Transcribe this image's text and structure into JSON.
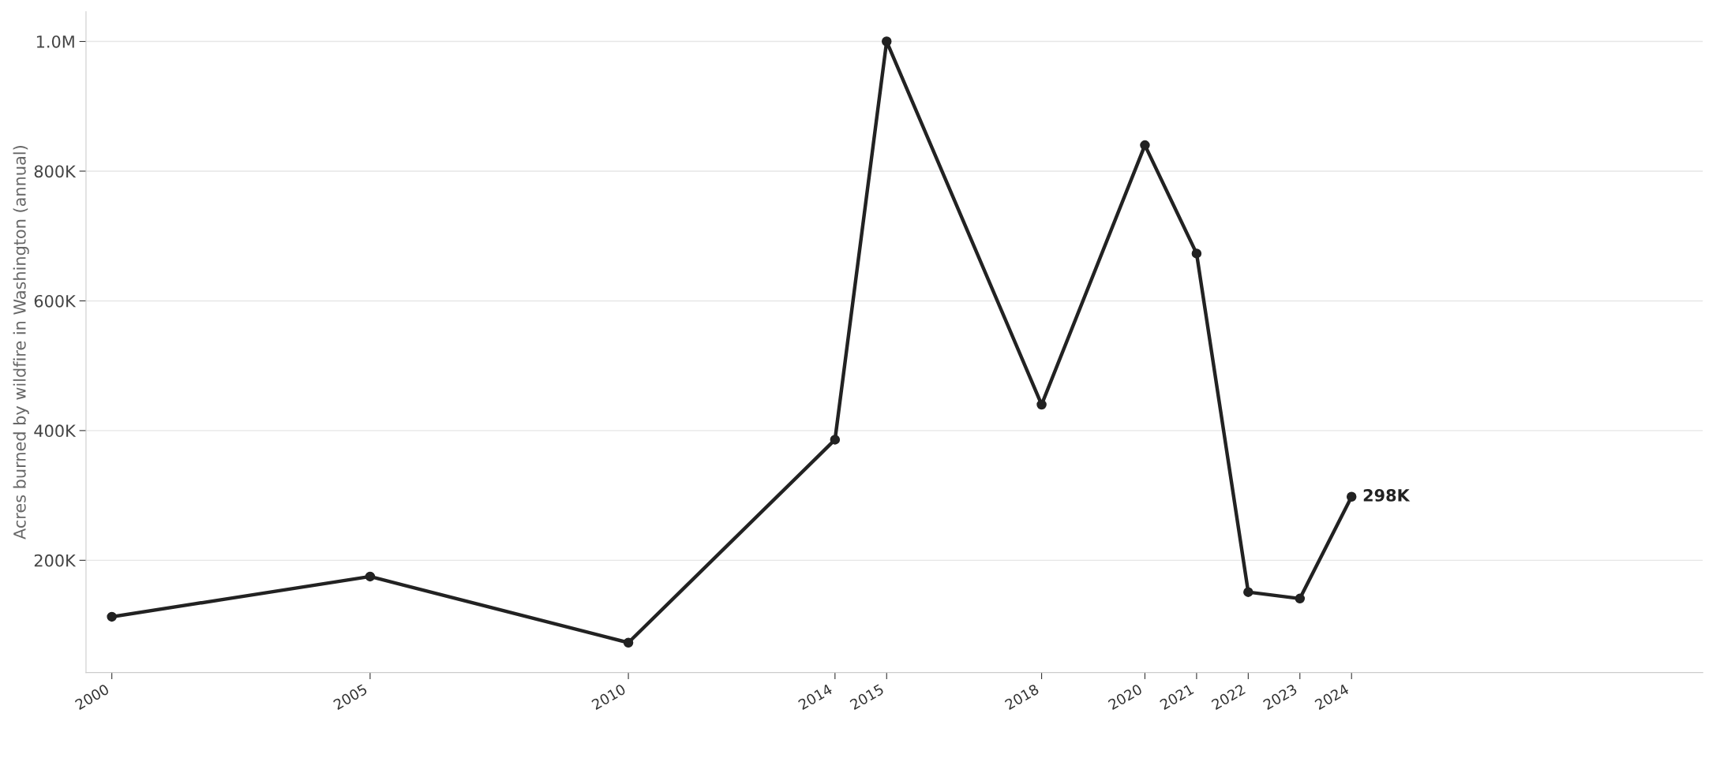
{
  "chart_data": {
    "type": "line",
    "ylabel": "Acres burned by wildfire in Washington (annual)",
    "x": [
      2000,
      2005,
      2010,
      2014,
      2015,
      2018,
      2020,
      2021,
      2022,
      2023,
      2024
    ],
    "series": [
      {
        "color": "#222222",
        "values": [
          113000,
          175000,
          73000,
          386000,
          1000000,
          440000,
          840000,
          673000,
          151000,
          141000,
          298000
        ],
        "value_labels": [
          null,
          null,
          null,
          null,
          null,
          null,
          null,
          null,
          null,
          null,
          "298K"
        ]
      }
    ],
    "xlim": [
      1999.5,
      2030.8
    ],
    "xticks": [
      2000,
      2005,
      2010,
      2014,
      2015,
      2018,
      2020,
      2021,
      2022,
      2023,
      2024
    ],
    "ylim": [
      27000,
      1046000
    ],
    "yticks": [
      {
        "value": 200000,
        "label": "200K"
      },
      {
        "value": 400000,
        "label": "400K"
      },
      {
        "value": 600000,
        "label": "600K"
      },
      {
        "value": 800000,
        "label": "800K"
      },
      {
        "value": 1000000,
        "label": "1.0M"
      }
    ],
    "grid": "y",
    "marker": "circle",
    "line_style": "solid",
    "legend": false
  }
}
